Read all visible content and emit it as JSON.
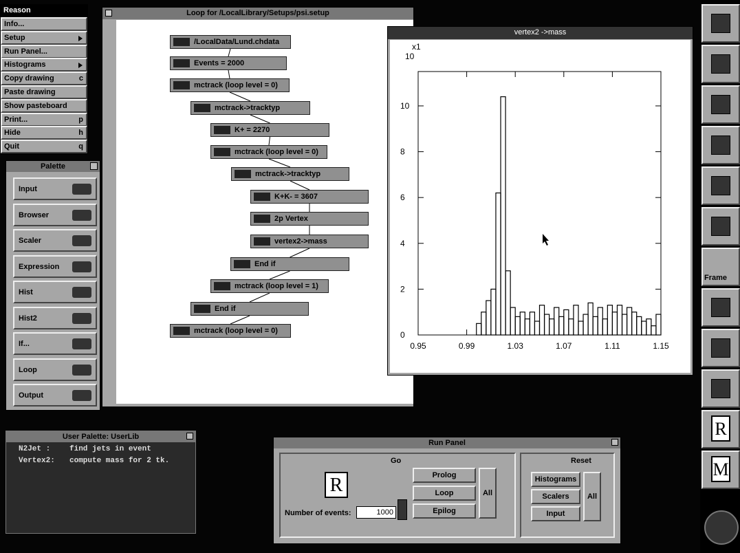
{
  "menu": {
    "title": "Reason",
    "items": [
      {
        "label": "Info..."
      },
      {
        "label": "Setup",
        "submenu": true
      },
      {
        "label": "Run Panel..."
      },
      {
        "label": "Histograms",
        "submenu": true
      },
      {
        "label": "Copy drawing",
        "key": "c"
      },
      {
        "label": "Paste drawing"
      },
      {
        "label": "Show pasteboard"
      },
      {
        "label": "Print...",
        "key": "p"
      },
      {
        "label": "Hide",
        "key": "h"
      },
      {
        "label": "Quit",
        "key": "q"
      }
    ]
  },
  "palette": {
    "title": "Palette",
    "tools": [
      "Input",
      "Browser",
      "Scaler",
      "Expression",
      "Hist",
      "Hist2",
      "If...",
      "Loop",
      "Output"
    ]
  },
  "loop_window": {
    "title": "Loop for /LocalLibrary/Setups/psi.setup",
    "nodes": [
      "/LocalData/Lund.chdata",
      "Events = 2000",
      "mctrack (loop level = 0)",
      "mctrack->tracktyp",
      "K+ = 2270",
      "mctrack (loop level = 0)",
      "mctrack->tracktyp",
      "K+K- = 3607",
      "2p Vertex",
      "vertex2->mass",
      "End if",
      "mctrack (loop level = 1)",
      "End if",
      "mctrack (loop level = 0)"
    ]
  },
  "chart_data": {
    "type": "histogram",
    "title": "vertex2 ->mass",
    "y_scale_note": [
      "x1",
      "10"
    ],
    "bins": [
      0.998,
      1.002,
      1.006,
      1.01,
      1.014,
      1.018,
      1.022,
      1.026,
      1.03,
      1.034,
      1.038,
      1.042,
      1.046,
      1.05,
      1.054,
      1.058,
      1.062,
      1.066,
      1.07,
      1.074,
      1.078,
      1.082,
      1.086,
      1.09,
      1.094,
      1.098,
      1.102,
      1.106,
      1.11,
      1.114,
      1.118,
      1.122,
      1.126,
      1.13,
      1.134,
      1.138,
      1.142,
      1.146,
      1.15
    ],
    "counts": [
      0.5,
      1.0,
      1.5,
      2.0,
      6.2,
      10.4,
      2.8,
      1.2,
      0.8,
      1.0,
      0.7,
      1.0,
      0.6,
      1.3,
      0.9,
      0.7,
      1.2,
      0.8,
      1.1,
      0.7,
      1.3,
      0.6,
      0.9,
      1.4,
      0.8,
      1.2,
      0.7,
      1.3,
      1.0,
      1.3,
      0.9,
      1.2,
      1.0,
      0.8,
      0.6,
      0.7,
      0.4,
      0.9
    ],
    "color": "#000000",
    "xlim": [
      0.95,
      1.15
    ],
    "xticks": [
      0.95,
      0.99,
      1.03,
      1.07,
      1.11,
      1.15
    ],
    "ylim": [
      0,
      11.5
    ],
    "yticks": [
      0,
      2,
      4,
      6,
      8,
      10
    ]
  },
  "user_palette": {
    "title": "User Palette: UserLib",
    "entries": [
      {
        "name": "N2Jet :",
        "description": "find jets in event"
      },
      {
        "name": "Vertex2:",
        "description": "compute mass for 2 tk."
      }
    ]
  },
  "run_panel": {
    "title": "Run Panel",
    "icon_letter": "R",
    "go": {
      "label": "Go",
      "buttons": [
        "Prolog",
        "Loop",
        "Epilog"
      ],
      "all": "All"
    },
    "reset": {
      "label": "Reset",
      "buttons": [
        "Histograms",
        "Scalers",
        "Input"
      ],
      "all": "All"
    },
    "events_label": "Number of events:",
    "events": 1000
  },
  "dock": {
    "frame_label": "Frame",
    "app_letters": [
      "R",
      "M"
    ]
  }
}
